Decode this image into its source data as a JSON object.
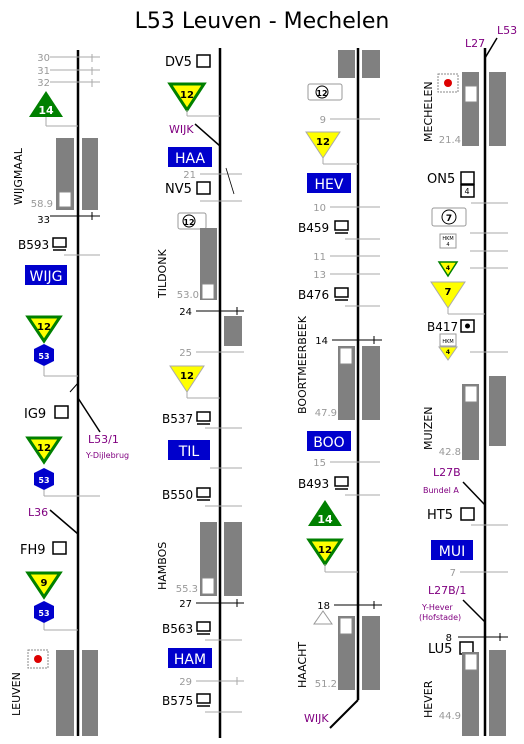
{
  "title": "L53 Leuven - Mechelen",
  "colors": {
    "track": "#000000",
    "platform": "#808080",
    "platform_edge": "#888888",
    "km_label": "#999999",
    "km_tick": "#aaaaaa",
    "line_label": "#800080",
    "station_bg": "#0000cc",
    "station_text": "#ffffff",
    "speed_green": "#008000",
    "speed_yellow": "#ffff00",
    "speed_hex": "#0000cc"
  },
  "columns": [
    {
      "id": "col1",
      "km_markers": [
        "30",
        "31",
        "32",
        "33"
      ],
      "labels": {
        "line_1": "L53/1",
        "line_1_sub": "Y-Dijlebrug",
        "line_2": "L36"
      },
      "stations": [
        {
          "name": "WIJGMAAL",
          "km": "58.9",
          "code": "WIJG"
        },
        {
          "name": "LEUVEN",
          "km": "",
          "code": ""
        }
      ],
      "signals": [
        "B593",
        "IG9",
        "FH9"
      ],
      "speeds": [
        "14",
        "12",
        "53",
        "12",
        "53",
        "9",
        "53"
      ],
      "icons": [
        "signal-box-icon"
      ]
    },
    {
      "id": "col2",
      "km_markers": [
        "21",
        "24",
        "25",
        "27",
        "29"
      ],
      "labels": {
        "line_1": "WIJK"
      },
      "stations": [
        {
          "name": "TILDONK",
          "km": "53.0",
          "code": "TIL"
        },
        {
          "name": "HAMBOS",
          "km": "55.3",
          "code": "HAM"
        },
        {
          "name": "",
          "km": "",
          "code": "HAA"
        }
      ],
      "signals": [
        "DV5",
        "NV5",
        "B537",
        "B550",
        "B563",
        "B575"
      ],
      "speeds": [
        "12",
        "12",
        "12"
      ]
    },
    {
      "id": "col3",
      "km_markers": [
        "9",
        "10",
        "11",
        "13",
        "14",
        "15",
        "18"
      ],
      "labels": {
        "line_1": "WIJK"
      },
      "stations": [
        {
          "name": "BOORTMEERBEEK",
          "km": "47.9",
          "code": "BOO"
        },
        {
          "name": "HAACHT",
          "km": "51.2",
          "code": ""
        },
        {
          "name": "",
          "km": "",
          "code": "HEV"
        }
      ],
      "signals": [
        "B459",
        "B476",
        "B493"
      ],
      "speeds": [
        "12",
        "12",
        "14",
        "12"
      ]
    },
    {
      "id": "col4",
      "km_markers": [
        "7",
        "8"
      ],
      "labels": {
        "line_1": "L27",
        "line_2": "L53",
        "line_3": "L27B",
        "line_3_sub": "Bundel A",
        "line_4": "L27B/1",
        "line_4_sub1": "Y-Hever",
        "line_4_sub2": "(Hofstade)"
      },
      "stations": [
        {
          "name": "MECHELEN",
          "km": "21.4",
          "code": ""
        },
        {
          "name": "MUIZEN",
          "km": "42.8",
          "code": "MUI"
        },
        {
          "name": "HEVER",
          "km": "44.9",
          "code": ""
        }
      ],
      "signals": [
        "ON5",
        "B417",
        "HT5",
        "LU5"
      ],
      "speeds": [
        "7",
        "4",
        "7",
        "4"
      ],
      "hkm": "HKM"
    }
  ]
}
